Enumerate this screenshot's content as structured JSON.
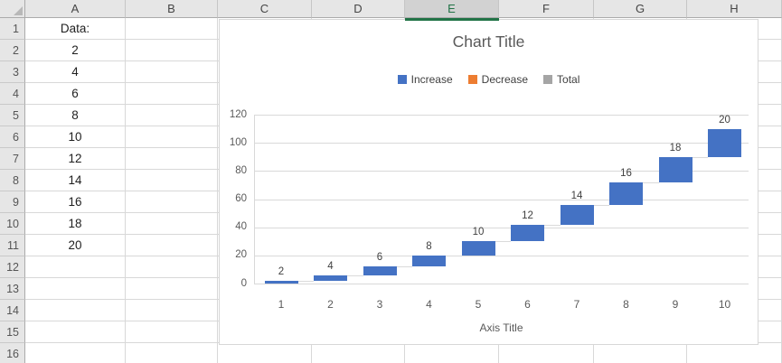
{
  "spreadsheet": {
    "column_headers": [
      "A",
      "B",
      "C",
      "D",
      "E",
      "F",
      "G",
      "H"
    ],
    "selected_column": "E",
    "row_headers": [
      "1",
      "2",
      "3",
      "4",
      "5",
      "6",
      "7",
      "8",
      "9",
      "10",
      "11",
      "12",
      "13",
      "14",
      "15",
      "16"
    ],
    "column_a_values": [
      "Data:",
      "2",
      "4",
      "6",
      "8",
      "10",
      "12",
      "14",
      "16",
      "18",
      "20"
    ]
  },
  "chart_data": {
    "type": "bar",
    "subtype": "waterfall",
    "title": "Chart Title",
    "xlabel": "Axis Title",
    "ylabel": "",
    "categories": [
      "1",
      "2",
      "3",
      "4",
      "5",
      "6",
      "7",
      "8",
      "9",
      "10"
    ],
    "series": [
      {
        "name": "Increase",
        "color": "#4472C4",
        "values": [
          2,
          4,
          6,
          8,
          10,
          12,
          14,
          16,
          18,
          20
        ]
      },
      {
        "name": "Decrease",
        "color": "#ED7D31",
        "values": []
      },
      {
        "name": "Total",
        "color": "#A5A5A5",
        "values": []
      }
    ],
    "cumulative_end": [
      2,
      6,
      12,
      20,
      30,
      42,
      56,
      72,
      90,
      110
    ],
    "data_labels": [
      "2",
      "4",
      "6",
      "8",
      "10",
      "12",
      "14",
      "16",
      "18",
      "20"
    ],
    "ylim": [
      0,
      120
    ],
    "yticks": [
      0,
      20,
      40,
      60,
      80,
      100,
      120
    ],
    "grid": true,
    "legend_position": "top",
    "legend": [
      {
        "label": "Increase",
        "color": "#4472C4"
      },
      {
        "label": "Decrease",
        "color": "#ED7D31"
      },
      {
        "label": "Total",
        "color": "#A5A5A5"
      }
    ]
  },
  "colors": {
    "bar_increase": "#4472C4",
    "bar_decrease": "#ED7D31",
    "bar_total": "#A5A5A5",
    "excel_green": "#217346",
    "chart_gridline": "#D9D9D9",
    "axis_text": "#595959"
  }
}
